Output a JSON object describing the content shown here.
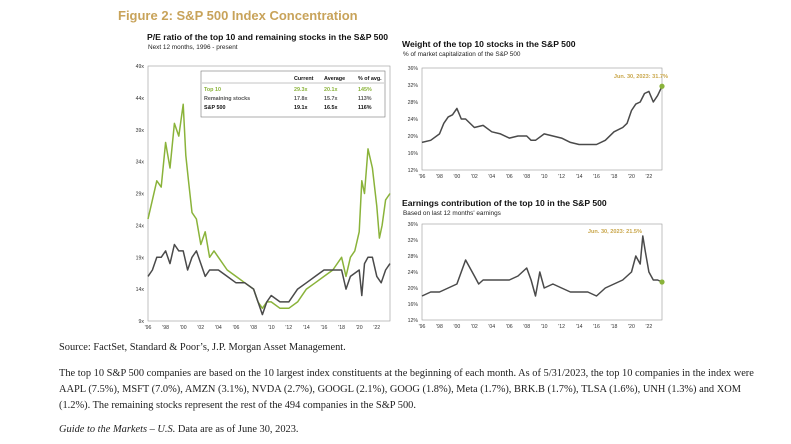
{
  "figure_title": "Figure 2: S&P 500 Index Concentration",
  "source_text": "Source: FactSet, Standard & Poor’s, J.P. Morgan Asset Management.",
  "footnote_text": "The top 10 S&P 500 companies are based on the 10 largest index constituents at the beginning of each month. As of 5/31/2023, the top 10 companies in the index were AAPL (7.5%), MSFT (7.0%), AMZN (3.1%), NVDA (2.7%), GOOGL (2.1%), GOOG (1.8%), Meta (1.7%), BRK.B (1.7%), TLSA (1.6%), UNH (1.3%) and XOM (1.2%). The remaining stocks represent the rest of the 494 companies in the S&P 500.",
  "guide_italic": "Guide to the Markets – U.S.",
  "guide_rest": " Data are as of June 30, 2023.",
  "colors": {
    "title_gold": "#c8a35a",
    "green": "#8ab33a",
    "gray": "#4a4a4a",
    "annotation_gold": "#c9a64a"
  },
  "chart_data": [
    {
      "type": "line",
      "title": "P/E ratio of the top 10 and remaining stocks in the S&P 500",
      "subtitle": "Next 12 months, 1996 - present",
      "ylim": [
        9,
        49
      ],
      "y_ticks": [
        "9x",
        "14x",
        "19x",
        "24x",
        "29x",
        "34x",
        "39x",
        "44x",
        "49x"
      ],
      "y_tick_values": [
        9,
        14,
        19,
        24,
        29,
        34,
        39,
        44,
        49
      ],
      "xlim": [
        1996,
        2023.5
      ],
      "x_ticks": [
        "'96",
        "'98",
        "'00",
        "'02",
        "'04",
        "'06",
        "'08",
        "'10",
        "'12",
        "'14",
        "'16",
        "'18",
        "'20",
        "'22"
      ],
      "x_tick_values": [
        1996,
        1998,
        2000,
        2002,
        2004,
        2006,
        2008,
        2010,
        2012,
        2014,
        2016,
        2018,
        2020,
        2022
      ],
      "series": [
        {
          "name": "Top 10",
          "color": "#8ab33a",
          "x": [
            1996,
            1996.5,
            1997,
            1997.5,
            1998,
            1998.5,
            1999,
            1999.5,
            2000,
            2000.3,
            2000.6,
            2001,
            2001.5,
            2002,
            2002.5,
            2003,
            2003.5,
            2004,
            2005,
            2006,
            2007,
            2008,
            2008.5,
            2009,
            2009.5,
            2010,
            2011,
            2012,
            2013,
            2014,
            2015,
            2016,
            2017,
            2018,
            2018.5,
            2019,
            2019.5,
            2020,
            2020.3,
            2020.6,
            2021,
            2021.5,
            2022,
            2022.3,
            2022.6,
            2023,
            2023.5
          ],
          "y": [
            25,
            28,
            31,
            30,
            37,
            33,
            40,
            38,
            43,
            35,
            31,
            26,
            25,
            21,
            23,
            19,
            20,
            19,
            17,
            16,
            15,
            14,
            12,
            11,
            12,
            12,
            11,
            11,
            12,
            14,
            15,
            16,
            17,
            19,
            16,
            19,
            20,
            23,
            31,
            29,
            36,
            33,
            27,
            22,
            24,
            28,
            29
          ]
        },
        {
          "name": "Remaining stocks",
          "color": "#4a4a4a",
          "x": [
            1996,
            1996.5,
            1997,
            1997.5,
            1998,
            1998.5,
            1999,
            1999.5,
            2000,
            2000.5,
            2001,
            2001.5,
            2002,
            2002.5,
            2003,
            2004,
            2005,
            2006,
            2007,
            2008,
            2008.5,
            2009,
            2009.5,
            2010,
            2011,
            2012,
            2013,
            2014,
            2015,
            2016,
            2017,
            2018,
            2018.5,
            2019,
            2020,
            2020.3,
            2020.6,
            2021,
            2021.5,
            2022,
            2022.5,
            2023,
            2023.5
          ],
          "y": [
            16,
            17,
            19,
            19,
            20,
            18,
            21,
            20,
            20,
            17,
            19,
            20,
            18,
            16,
            17,
            17,
            16,
            15,
            15,
            14,
            12,
            10,
            12,
            13,
            12,
            12,
            14,
            15,
            16,
            17,
            17,
            17,
            14,
            16,
            17,
            13,
            18,
            19,
            19,
            16,
            15,
            17,
            18
          ]
        }
      ],
      "legend_table": {
        "headers": [
          "",
          "Current",
          "Average",
          "% of avg."
        ],
        "rows": [
          {
            "label": "Top 10",
            "current": "29.3x",
            "average": "20.1x",
            "pct": "145%",
            "color": "#8ab33a"
          },
          {
            "label": "Remaining stocks",
            "current": "17.8x",
            "average": "15.7x",
            "pct": "113%",
            "color": "#555555"
          },
          {
            "label": "S&P 500",
            "current": "19.1x",
            "average": "16.5x",
            "pct": "116%",
            "color": "#111111"
          }
        ]
      }
    },
    {
      "type": "line",
      "title": "Weight of the top 10 stocks in the S&P 500",
      "subtitle": "% of market capitalization of the S&P 500",
      "ylim": [
        12,
        36
      ],
      "y_ticks": [
        "12%",
        "16%",
        "20%",
        "24%",
        "28%",
        "32%",
        "36%"
      ],
      "y_tick_values": [
        12,
        16,
        20,
        24,
        28,
        32,
        36
      ],
      "xlim": [
        1996,
        2023.5
      ],
      "x_ticks": [
        "'96",
        "'98",
        "'00",
        "'02",
        "'04",
        "'06",
        "'08",
        "'10",
        "'12",
        "'14",
        "'16",
        "'18",
        "'20",
        "'22"
      ],
      "x_tick_values": [
        1996,
        1998,
        2000,
        2002,
        2004,
        2006,
        2008,
        2010,
        2012,
        2014,
        2016,
        2018,
        2020,
        2022
      ],
      "annotation": "Jun. 30, 2023: 31.7%",
      "series": [
        {
          "name": "",
          "color": "#4a4a4a",
          "endpoint_color": "#8ab33a",
          "x": [
            1996,
            1997,
            1998,
            1998.5,
            1999,
            1999.5,
            2000,
            2000.5,
            2001,
            2002,
            2003,
            2004,
            2005,
            2006,
            2007,
            2008,
            2008.5,
            2009,
            2010,
            2011,
            2012,
            2013,
            2014,
            2015,
            2016,
            2017,
            2018,
            2019,
            2019.5,
            2020,
            2020.5,
            2021,
            2021.5,
            2022,
            2022.5,
            2023,
            2023.5
          ],
          "y": [
            18.5,
            19,
            20.5,
            23,
            24.5,
            25,
            26.5,
            24,
            24,
            22,
            22.5,
            21,
            20.5,
            19.5,
            20,
            20,
            19,
            19,
            20.5,
            20,
            19.5,
            18.5,
            18,
            18,
            18,
            19,
            21,
            22,
            23,
            26,
            27.5,
            28,
            30,
            30.5,
            28,
            29.5,
            31.7
          ]
        }
      ]
    },
    {
      "type": "line",
      "title": "Earnings contribution of the top 10 in the S&P 500",
      "subtitle": "Based on last 12 months' earnings",
      "ylim": [
        12,
        36
      ],
      "y_ticks": [
        "12%",
        "16%",
        "20%",
        "24%",
        "28%",
        "32%",
        "36%"
      ],
      "y_tick_values": [
        12,
        16,
        20,
        24,
        28,
        32,
        36
      ],
      "xlim": [
        1996,
        2023.5
      ],
      "x_ticks": [
        "'96",
        "'98",
        "'00",
        "'02",
        "'04",
        "'06",
        "'08",
        "'10",
        "'12",
        "'14",
        "'16",
        "'18",
        "'20",
        "'22"
      ],
      "x_tick_values": [
        1996,
        1998,
        2000,
        2002,
        2004,
        2006,
        2008,
        2010,
        2012,
        2014,
        2016,
        2018,
        2020,
        2022
      ],
      "annotation": "Jun. 30, 2023: 21.5%",
      "series": [
        {
          "name": "",
          "color": "#4a4a4a",
          "endpoint_color": "#8ab33a",
          "x": [
            1996,
            1997,
            1998,
            1999,
            2000,
            2001,
            2001.5,
            2002,
            2002.5,
            2003,
            2004,
            2005,
            2006,
            2007,
            2008,
            2008.5,
            2009,
            2009.5,
            2010,
            2011,
            2012,
            2013,
            2014,
            2015,
            2016,
            2017,
            2018,
            2019,
            2020,
            2020.5,
            2021,
            2021.3,
            2021.6,
            2022,
            2022.5,
            2023,
            2023.5
          ],
          "y": [
            18,
            19,
            19,
            20,
            21,
            27,
            25,
            23,
            21,
            22,
            22,
            22,
            22,
            23,
            25,
            22,
            18,
            24,
            20,
            21,
            20,
            19,
            19,
            19,
            18,
            20,
            21,
            22,
            24,
            28,
            26,
            33,
            29,
            24,
            22,
            22,
            21.5
          ]
        }
      ]
    }
  ]
}
